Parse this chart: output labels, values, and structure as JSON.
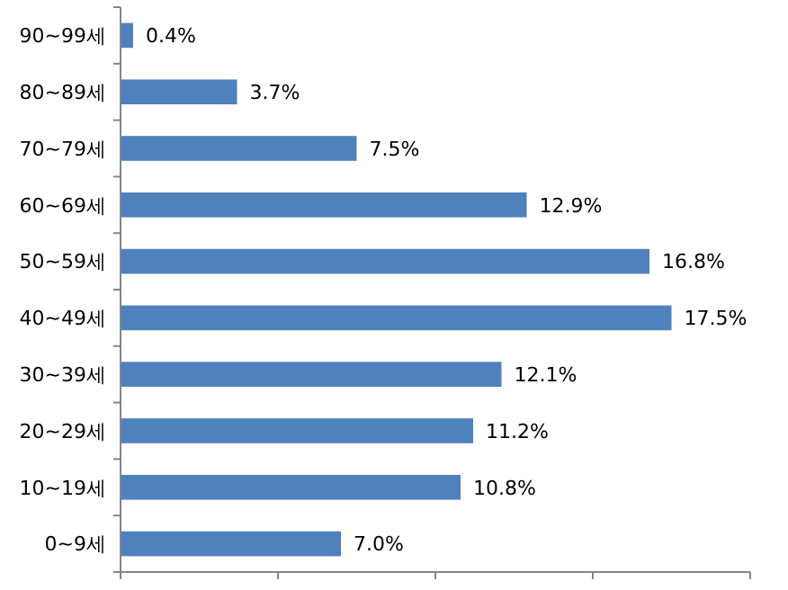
{
  "chart_data": {
    "type": "bar",
    "orientation": "horizontal",
    "categories": [
      "90~99세",
      "80~89세",
      "70~79세",
      "60~69세",
      "50~59세",
      "40~49세",
      "30~39세",
      "20~29세",
      "10~19세",
      "0~9세"
    ],
    "values": [
      0.4,
      3.7,
      7.5,
      12.9,
      16.8,
      17.5,
      12.1,
      11.2,
      10.8,
      7.0
    ],
    "value_labels": [
      "0.4%",
      "3.7%",
      "7.5%",
      "12.9%",
      "16.8%",
      "17.5%",
      "12.1%",
      "11.2%",
      "10.8%",
      "7.0%"
    ],
    "color": "#4f81bd",
    "xlim": [
      0,
      20
    ],
    "xticks": [
      {
        "value": 0,
        "label": null
      },
      {
        "value": 5,
        "label": null
      },
      {
        "value": 10,
        "label": null
      },
      {
        "value": 15,
        "label": null
      },
      {
        "value": 20,
        "label": null
      }
    ],
    "tick_labels": "y",
    "grid": false
  }
}
